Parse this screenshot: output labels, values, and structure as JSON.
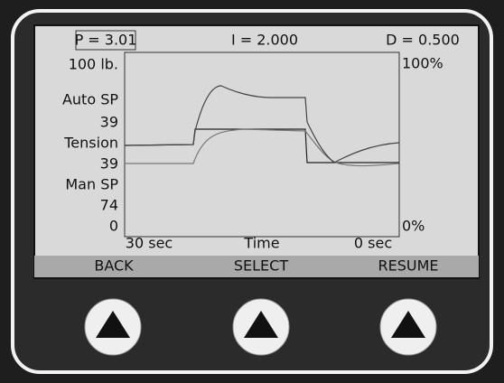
{
  "header": {
    "p": "P = 3.01",
    "i": "I = 2.000",
    "d": "D = 0.500"
  },
  "left_labels": [
    "100 lb.",
    "Auto SP",
    "39",
    "Tension",
    "39",
    "Man SP",
    "74",
    "0"
  ],
  "right_labels": [
    "100%",
    "0%"
  ],
  "bottom_labels": [
    "30 sec",
    "Time",
    "0 sec"
  ],
  "softkeys": [
    "BACK",
    "SELECT",
    "RESUME"
  ]
}
